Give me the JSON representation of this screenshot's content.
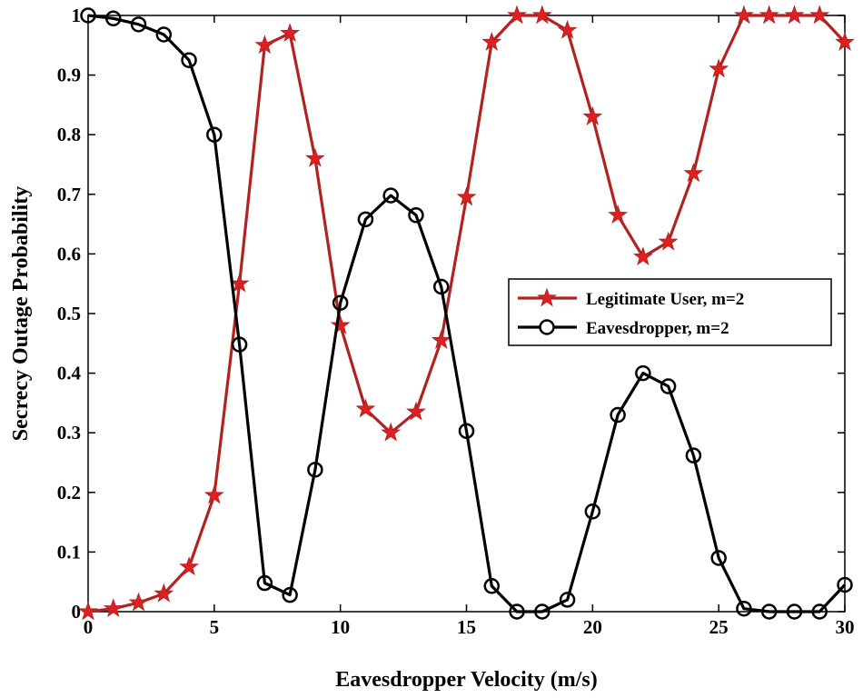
{
  "chart_data": {
    "type": "line",
    "title": "",
    "xlabel": "Eavesdropper Velocity (m/s)",
    "ylabel": "Secrecy Outage Probability",
    "xlim": [
      0,
      30
    ],
    "ylim": [
      0,
      1
    ],
    "xticks": [
      "0",
      "5",
      "10",
      "15",
      "20",
      "25",
      "30"
    ],
    "yticks": [
      "0",
      "0.1",
      "0.2",
      "0.3",
      "0.4",
      "0.5",
      "0.6",
      "0.7",
      "0.8",
      "0.9",
      "1"
    ],
    "grid": false,
    "legend_position": "right",
    "x": [
      0,
      1,
      2,
      3,
      4,
      5,
      6,
      7,
      8,
      9,
      10,
      11,
      12,
      13,
      14,
      15,
      16,
      17,
      18,
      19,
      20,
      21,
      22,
      23,
      24,
      25,
      26,
      27,
      28,
      29,
      30
    ],
    "series": [
      {
        "name": "Legitimate User, m=2",
        "color": "#b22222",
        "marker": "star",
        "values": [
          0.0,
          0.005,
          0.015,
          0.03,
          0.075,
          0.195,
          0.55,
          0.95,
          0.97,
          0.76,
          0.48,
          0.34,
          0.3,
          0.335,
          0.455,
          0.695,
          0.955,
          1.0,
          1.0,
          0.975,
          0.83,
          0.665,
          0.595,
          0.62,
          0.735,
          0.91,
          1.0,
          1.0,
          1.0,
          1.0,
          0.955
        ]
      },
      {
        "name": "Eavesdropper, m=2",
        "color": "#000000",
        "marker": "circle",
        "values": [
          1.0,
          0.995,
          0.985,
          0.968,
          0.925,
          0.8,
          0.448,
          0.048,
          0.028,
          0.238,
          0.518,
          0.658,
          0.698,
          0.665,
          0.545,
          0.303,
          0.043,
          0.0,
          0.0,
          0.02,
          0.168,
          0.33,
          0.4,
          0.378,
          0.262,
          0.09,
          0.005,
          0.0,
          0.0,
          0.0,
          0.045
        ]
      }
    ]
  }
}
